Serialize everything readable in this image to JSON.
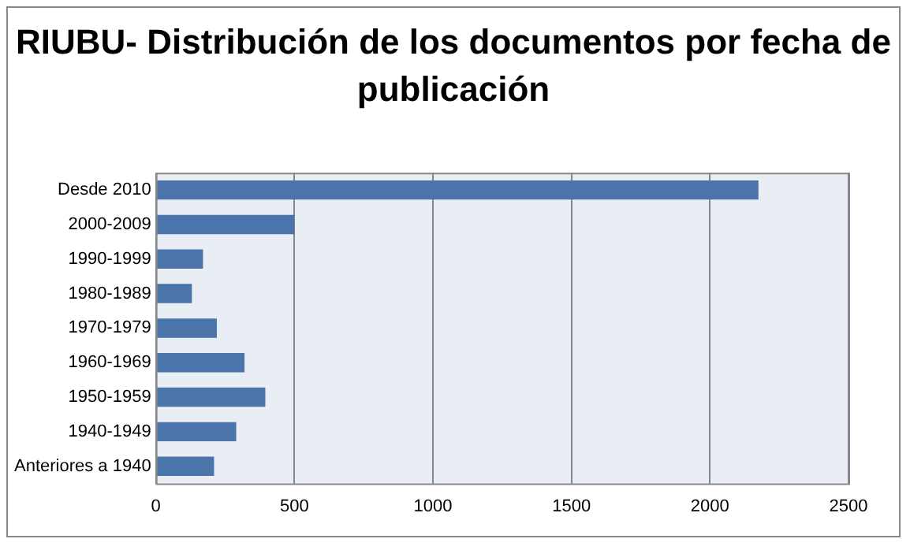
{
  "chart_data": {
    "type": "bar",
    "orientation": "horizontal",
    "title": "RIUBU- Distribución de los documentos por fecha de publicación",
    "categories": [
      "Desde 2010",
      "2000-2009",
      "1990-1999",
      "1980-1989",
      "1970-1979",
      "1960-1969",
      "1950-1959",
      "1940-1949",
      "Anteriores a 1940"
    ],
    "values": [
      2175,
      500,
      170,
      130,
      220,
      320,
      395,
      290,
      210
    ],
    "color": "#4a74aa",
    "xlim": [
      0,
      2500
    ],
    "xticks": [
      0,
      500,
      1000,
      1500,
      2000,
      2500
    ],
    "grid": "x",
    "legend": false
  }
}
